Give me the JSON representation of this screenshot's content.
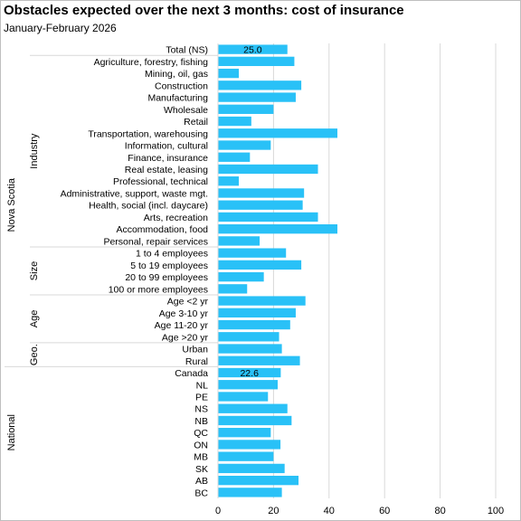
{
  "title": "Obstacles expected over the next 3 months:  cost of insurance",
  "subtitle": "January-February  2026",
  "colors": {
    "bar": "#29c1f7",
    "grid": "#d9d9d9",
    "text": "#000000"
  },
  "chart_data": {
    "type": "bar",
    "orientation": "horizontal",
    "xlim": [
      0,
      100
    ],
    "x_ticks": [
      "0",
      "20",
      "40",
      "60",
      "80",
      "100"
    ],
    "grid": true,
    "groups": [
      {
        "outer": "Nova Scotia",
        "sub": "",
        "items": [
          {
            "label": "Total (NS)",
            "value": 25.0,
            "data_label": "25.0"
          }
        ]
      },
      {
        "outer": "Nova Scotia",
        "sub": "Industry",
        "items": [
          {
            "label": "Agriculture, forestry, fishing",
            "value": 27.5
          },
          {
            "label": "Mining, oil, gas",
            "value": 7.5
          },
          {
            "label": "Construction",
            "value": 30.0
          },
          {
            "label": "Manufacturing",
            "value": 28.0
          },
          {
            "label": "Wholesale",
            "value": 20.0
          },
          {
            "label": "Retail",
            "value": 12.0
          },
          {
            "label": "Transportation, warehousing",
            "value": 43.0
          },
          {
            "label": "Information, cultural",
            "value": 19.0
          },
          {
            "label": "Finance, insurance",
            "value": 11.5
          },
          {
            "label": "Real estate, leasing",
            "value": 36.0
          },
          {
            "label": "Professional, technical",
            "value": 7.5
          },
          {
            "label": "Administrative, support, waste mgt.",
            "value": 31.0
          },
          {
            "label": "Health, social (incl. daycare)",
            "value": 30.5
          },
          {
            "label": "Arts, recreation",
            "value": 36.0
          },
          {
            "label": "Accommodation, food",
            "value": 43.0
          },
          {
            "label": "Personal, repair services",
            "value": 15.0
          }
        ]
      },
      {
        "outer": "Nova Scotia",
        "sub": "Size",
        "items": [
          {
            "label": "1 to 4 employees",
            "value": 24.5
          },
          {
            "label": "5 to 19 employees",
            "value": 30.0
          },
          {
            "label": "20 to 99 employees",
            "value": 16.5
          },
          {
            "label": "100 or more employees",
            "value": 10.5
          }
        ]
      },
      {
        "outer": "Nova Scotia",
        "sub": "Age",
        "items": [
          {
            "label": "Age <2 yr",
            "value": 31.5
          },
          {
            "label": "Age 3-10 yr",
            "value": 28.0
          },
          {
            "label": "Age 11-20 yr",
            "value": 26.0
          },
          {
            "label": "Age >20 yr",
            "value": 22.0
          }
        ]
      },
      {
        "outer": "Nova Scotia",
        "sub": "Geo.",
        "items": [
          {
            "label": "Urban",
            "value": 23.0
          },
          {
            "label": "Rural",
            "value": 29.5
          }
        ]
      },
      {
        "outer": "National",
        "sub": "",
        "items": [
          {
            "label": "Canada",
            "value": 22.6,
            "data_label": "22.6"
          },
          {
            "label": "NL",
            "value": 21.5
          },
          {
            "label": "PE",
            "value": 18.0
          },
          {
            "label": "NS",
            "value": 25.0
          },
          {
            "label": "NB",
            "value": 26.5
          },
          {
            "label": "QC",
            "value": 19.0
          },
          {
            "label": "ON",
            "value": 22.5
          },
          {
            "label": "MB",
            "value": 20.0
          },
          {
            "label": "SK",
            "value": 24.0
          },
          {
            "label": "AB",
            "value": 29.0
          },
          {
            "label": "BC",
            "value": 23.0
          }
        ]
      }
    ]
  }
}
